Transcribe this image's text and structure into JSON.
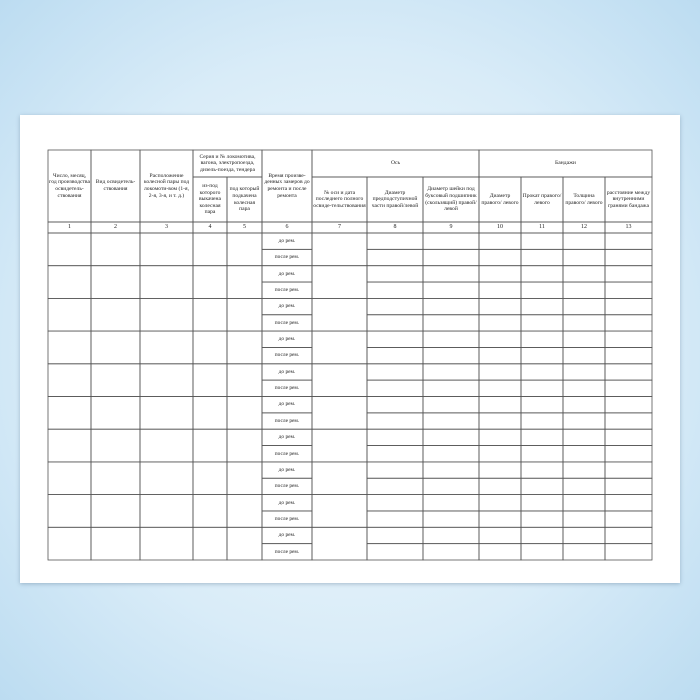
{
  "table": {
    "headers": {
      "col1": "Число, месяц, год производства освидетель-ствования",
      "col2": "Вид освидетель-ствования",
      "col3": "Расположение колесной пары под локомоти-вом (1-я, 2-я, 3-я, и т. д.)",
      "group_locomotive": "Серия и № локомотива, вагона, электропоезда, дизель-поезда, тендера",
      "col4": "из-под которого выкачена колесная пара",
      "col5": "под который подкачена колесная пара",
      "col6": "Время произве-денных замеров до ремонта и после ремонта",
      "group_axle": "Ось",
      "col7": "№ оси и дата последнего полного освиде-тельствования",
      "col8": "Диаметр предподступичной части правой/левой",
      "col9": "Диаметр шейки под буксовый подшипник (скользящий) правой/левой",
      "group_tyres": "Бандажи",
      "col10": "Диаметр правого/ левого",
      "col11": "Прокат правого/ левого",
      "col12": "Толщина правого/ левого",
      "col13": "расстояние между внутренними гранями бандажа"
    },
    "column_numbers": [
      "1",
      "2",
      "3",
      "4",
      "5",
      "6",
      "7",
      "8",
      "9",
      "10",
      "11",
      "12",
      "13"
    ],
    "rows": [
      {
        "before": "до рем.",
        "after": "после рем."
      },
      {
        "before": "до рем.",
        "after": "после рем."
      },
      {
        "before": "до рем.",
        "after": "после рем."
      },
      {
        "before": "до рем.",
        "after": "после рем."
      },
      {
        "before": "до рем.",
        "after": "после рем."
      },
      {
        "before": "до рем.",
        "after": "после рем."
      },
      {
        "before": "до рем.",
        "after": "после рем."
      },
      {
        "before": "до рем.",
        "after": "после рем."
      },
      {
        "before": "до рем.",
        "after": "после рем."
      },
      {
        "before": "до рем.",
        "after": "после рем."
      }
    ]
  }
}
